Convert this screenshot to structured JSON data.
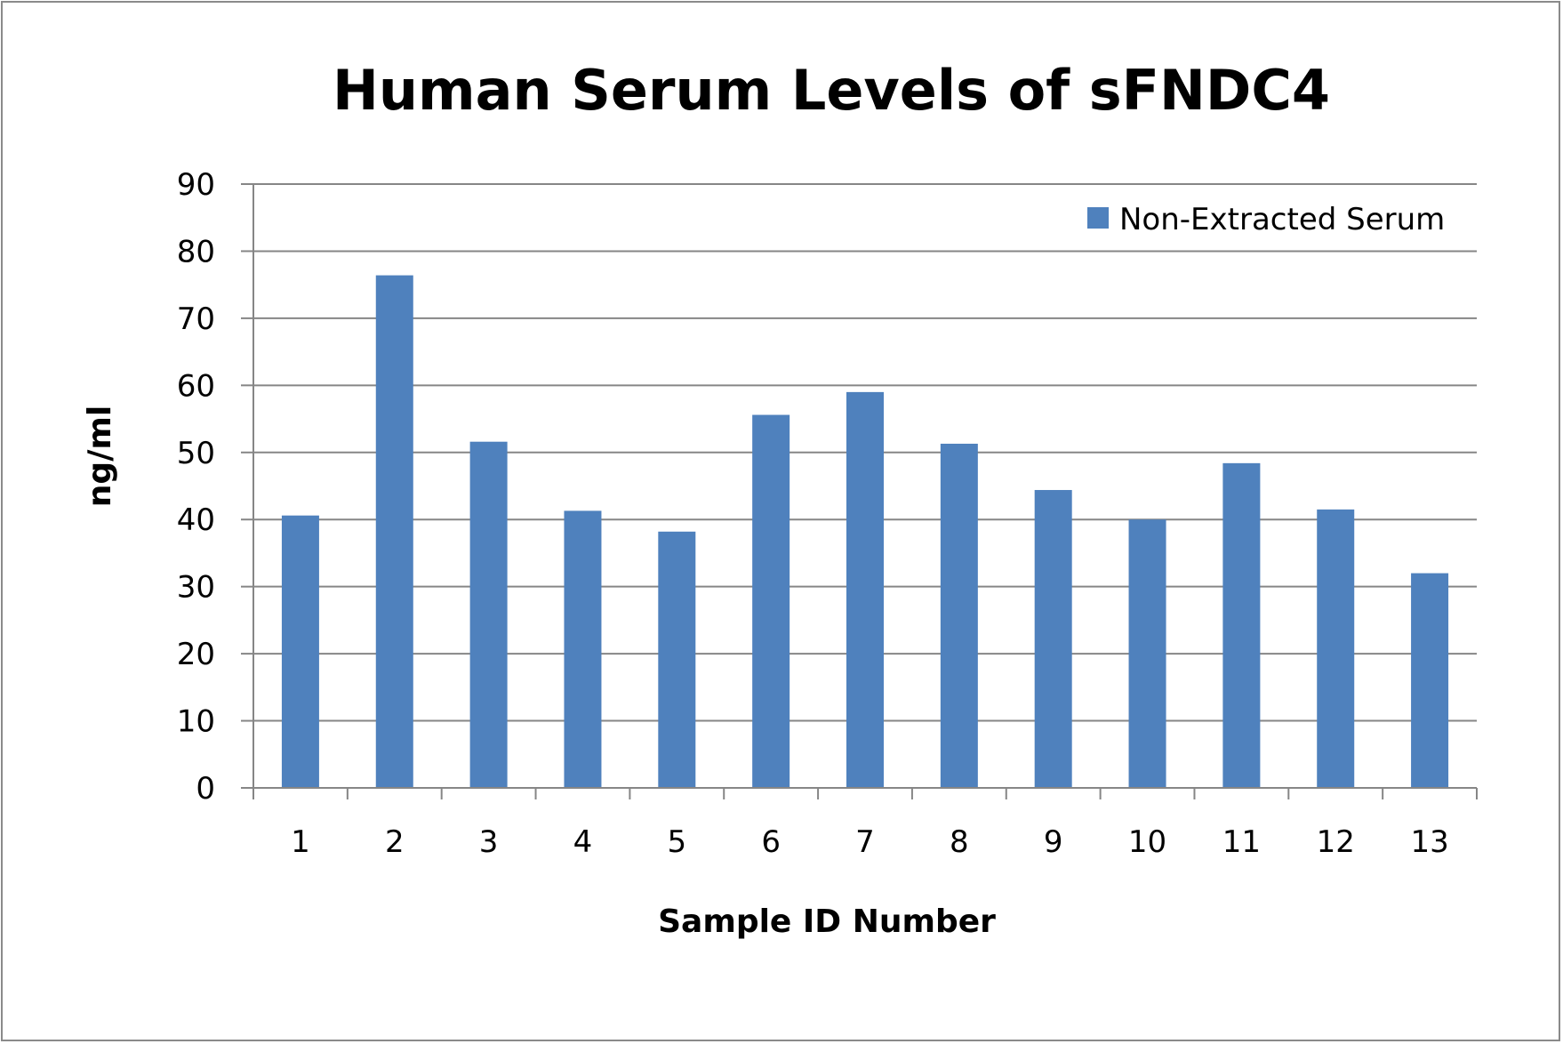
{
  "chart_data": {
    "type": "bar",
    "title": "Human Serum Levels of sFNDC4",
    "xlabel": "Sample ID Number",
    "ylabel": "ng/ml",
    "categories": [
      "1",
      "2",
      "3",
      "4",
      "5",
      "6",
      "7",
      "8",
      "9",
      "10",
      "11",
      "12",
      "13"
    ],
    "series": [
      {
        "name": "Non-Extracted Serum",
        "color": "#4f81bd",
        "values": [
          40.6,
          76.4,
          51.6,
          41.3,
          38.2,
          55.6,
          59.0,
          51.3,
          44.4,
          40.0,
          48.4,
          41.5,
          32.0
        ]
      }
    ],
    "ylim": [
      0,
      90
    ],
    "yticks": [
      0,
      10,
      20,
      30,
      40,
      50,
      60,
      70,
      80,
      90
    ],
    "grid": true,
    "legend_position": "top-right",
    "colors": {
      "gridline": "#868686",
      "axis": "#868686",
      "bar": "#4f81bd"
    }
  }
}
